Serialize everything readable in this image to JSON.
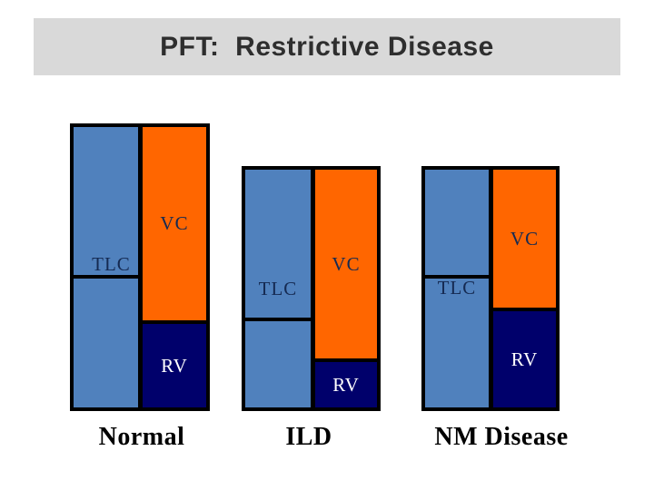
{
  "slide": {
    "title": "PFT:  Restrictive Disease"
  },
  "colors": {
    "background": "#ffffff",
    "banner-bg": "#d9d9d9",
    "title-text": "#2e2e2e",
    "frame": "#000000",
    "blue": "#5081bd",
    "orange": "#ff6600",
    "navy": "#00006b",
    "label-dark": "#152a52",
    "label-light": "#ffffff",
    "caption": "#000000"
  },
  "panels": [
    {
      "caption": "Normal",
      "labels": {
        "tlc": "TLC",
        "vc": "VC",
        "rv": "RV"
      }
    },
    {
      "caption": "ILD",
      "labels": {
        "tlc": "TLC",
        "vc": "VC",
        "rv": "RV"
      }
    },
    {
      "caption": "NM Disease",
      "labels": {
        "tlc": "TLC",
        "vc": "VC",
        "rv": "RV"
      }
    }
  ]
}
